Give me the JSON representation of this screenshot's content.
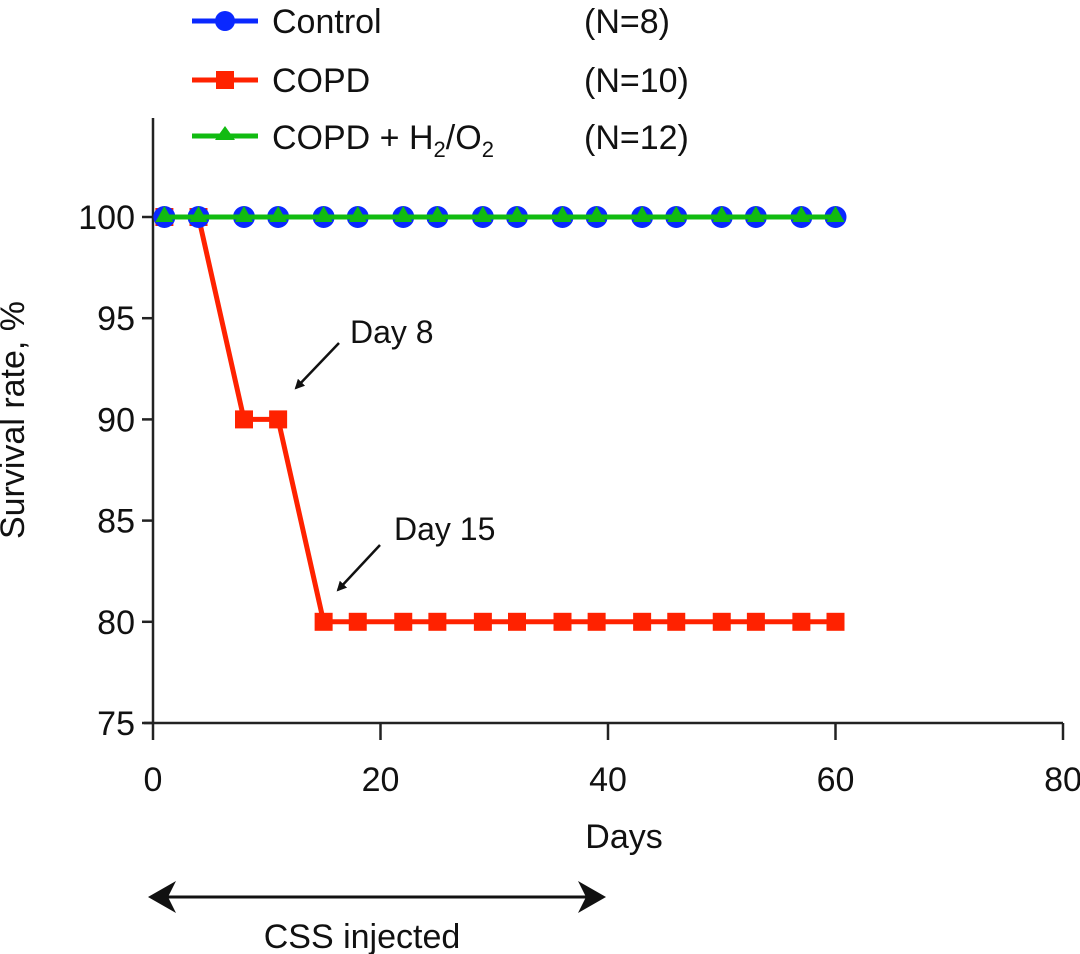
{
  "chart_data": {
    "type": "line",
    "title": "",
    "xlabel": "Days",
    "ylabel": "Survival rate, %",
    "xlim": [
      0,
      80
    ],
    "ylim": [
      75,
      100
    ],
    "xticks": [
      0,
      20,
      40,
      60,
      80
    ],
    "yticks": [
      75,
      80,
      85,
      90,
      95,
      100
    ],
    "grid": false,
    "legend_position": "top-left",
    "series": [
      {
        "name": "Control",
        "n_label": "(N=8)",
        "color": "#0a28ff",
        "marker": "circle",
        "x": [
          1,
          4,
          8,
          11,
          15,
          18,
          22,
          25,
          29,
          32,
          36,
          39,
          43,
          46,
          50,
          53,
          57,
          60
        ],
        "y": [
          100,
          100,
          100,
          100,
          100,
          100,
          100,
          100,
          100,
          100,
          100,
          100,
          100,
          100,
          100,
          100,
          100,
          100
        ]
      },
      {
        "name": "COPD",
        "n_label": "(N=10)",
        "color": "#ff2200",
        "marker": "square",
        "x": [
          1,
          4,
          8,
          11,
          15,
          18,
          22,
          25,
          29,
          32,
          36,
          39,
          43,
          46,
          50,
          53,
          57,
          60
        ],
        "y": [
          100,
          100,
          90,
          90,
          80,
          80,
          80,
          80,
          80,
          80,
          80,
          80,
          80,
          80,
          80,
          80,
          80,
          80
        ]
      },
      {
        "name": "COPD + H2/O2",
        "name_parts": [
          "COPD + H",
          "2",
          "/O",
          "2"
        ],
        "n_label": "(N=12)",
        "color": "#11bb11",
        "marker": "triangle",
        "x": [
          1,
          4,
          8,
          11,
          15,
          18,
          22,
          25,
          29,
          32,
          36,
          39,
          43,
          46,
          50,
          53,
          57,
          60
        ],
        "y": [
          100,
          100,
          100,
          100,
          100,
          100,
          100,
          100,
          100,
          100,
          100,
          100,
          100,
          100,
          100,
          100,
          100,
          100
        ]
      }
    ],
    "annotations": [
      {
        "text": "Day 8",
        "points_to": {
          "x": 12,
          "y": 91.5
        }
      },
      {
        "text": "Day 15",
        "points_to": {
          "x": 16,
          "y": 81.5
        }
      }
    ],
    "range_annotation": {
      "text": "CSS injected",
      "x_start": 0,
      "x_end": 40
    }
  }
}
